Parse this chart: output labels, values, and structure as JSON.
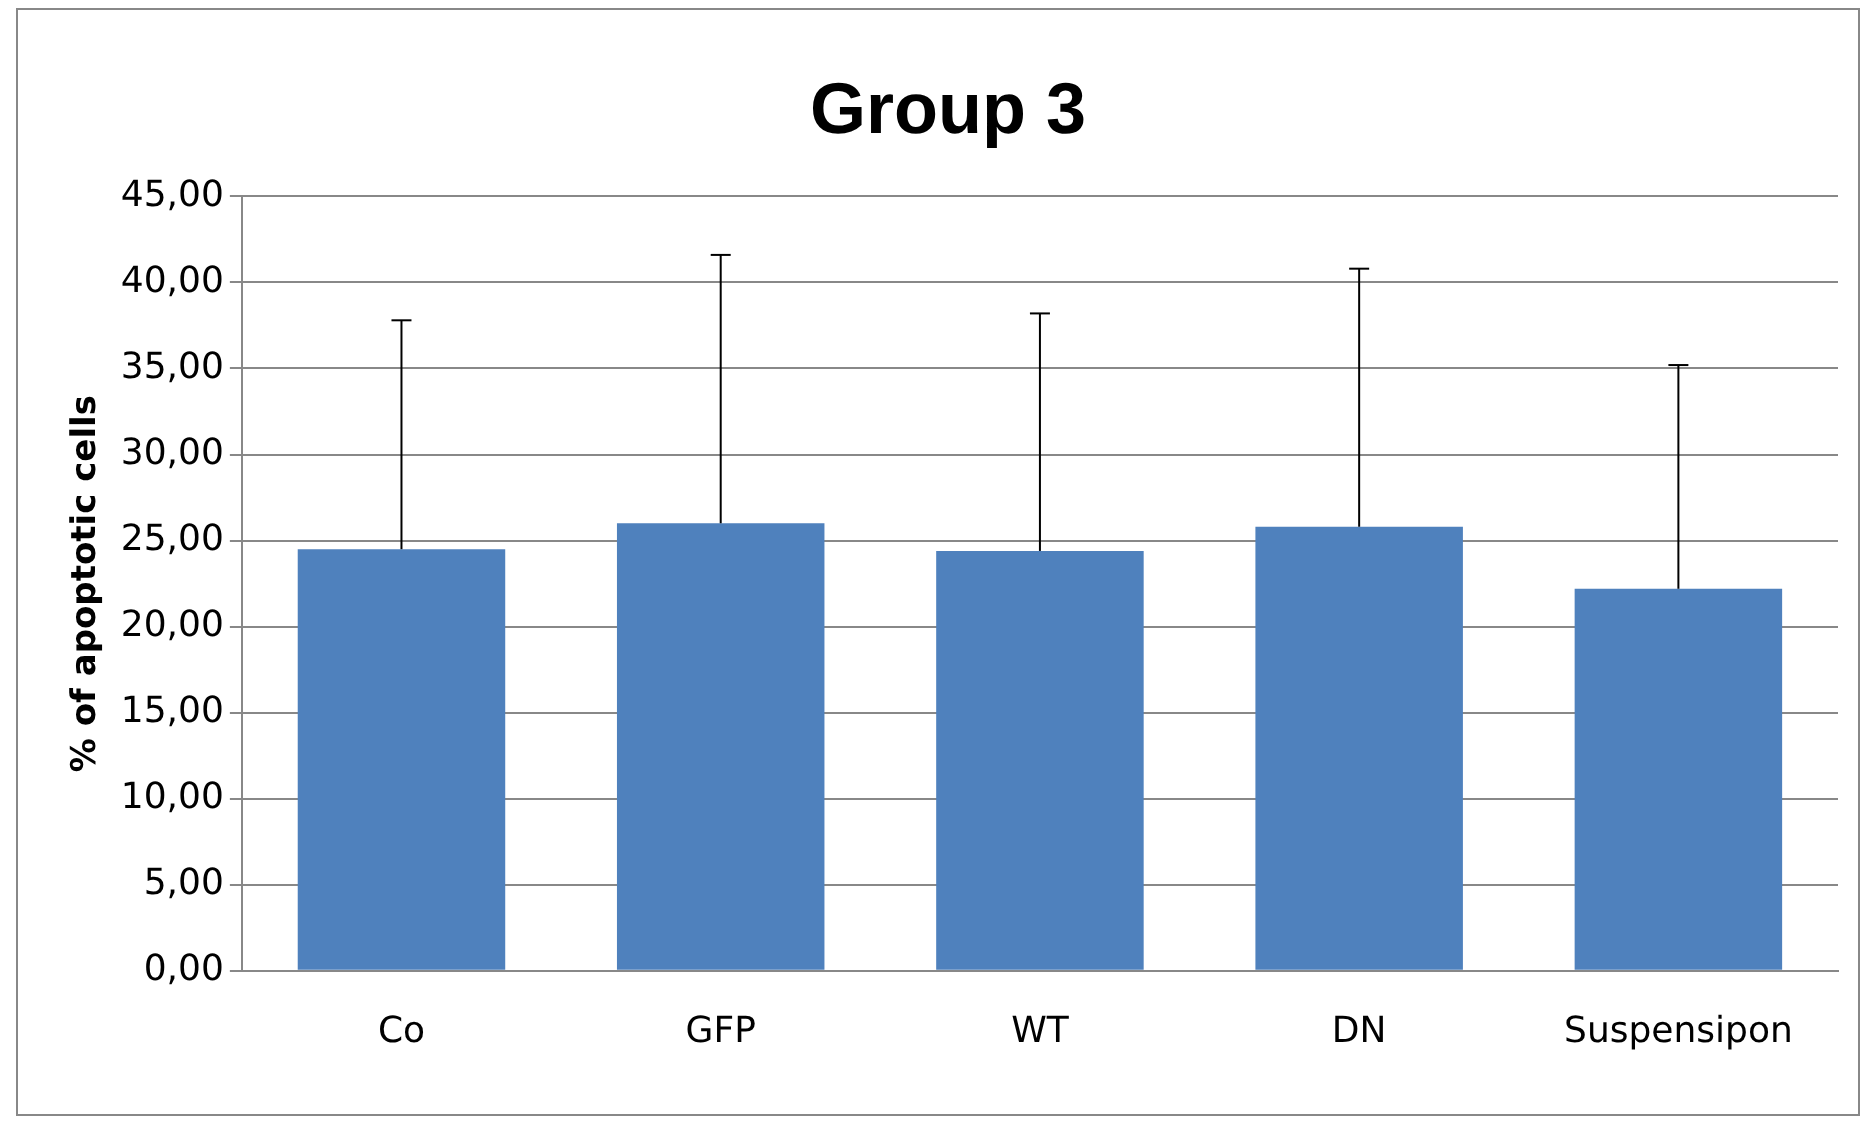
{
  "chart_data": {
    "type": "bar",
    "title": "Group 3",
    "ylabel": "% of apoptotic cells",
    "categories": [
      "Co",
      "GFP",
      "WT",
      "DN",
      "Suspensipon"
    ],
    "values": [
      24.5,
      26.0,
      24.4,
      25.8,
      22.2
    ],
    "errors": [
      [
        24.5,
        37.8
      ],
      [
        26.0,
        41.6
      ],
      [
        24.4,
        38.2
      ],
      [
        25.8,
        40.8
      ],
      [
        22.2,
        35.2
      ]
    ],
    "color": "#4f81bd",
    "ylim": [
      0,
      45
    ],
    "yticks": [
      {
        "value": 0,
        "label": "0,00"
      },
      {
        "value": 5,
        "label": "5,00"
      },
      {
        "value": 10,
        "label": "10,00"
      },
      {
        "value": 15,
        "label": "15,00"
      },
      {
        "value": 20,
        "label": "20,00"
      },
      {
        "value": 25,
        "label": "25,00"
      },
      {
        "value": 30,
        "label": "30,00"
      },
      {
        "value": 35,
        "label": "35,00"
      },
      {
        "value": 40,
        "label": "40,00"
      },
      {
        "value": 45,
        "label": "45,00"
      }
    ],
    "grid": "y",
    "legend": false
  }
}
